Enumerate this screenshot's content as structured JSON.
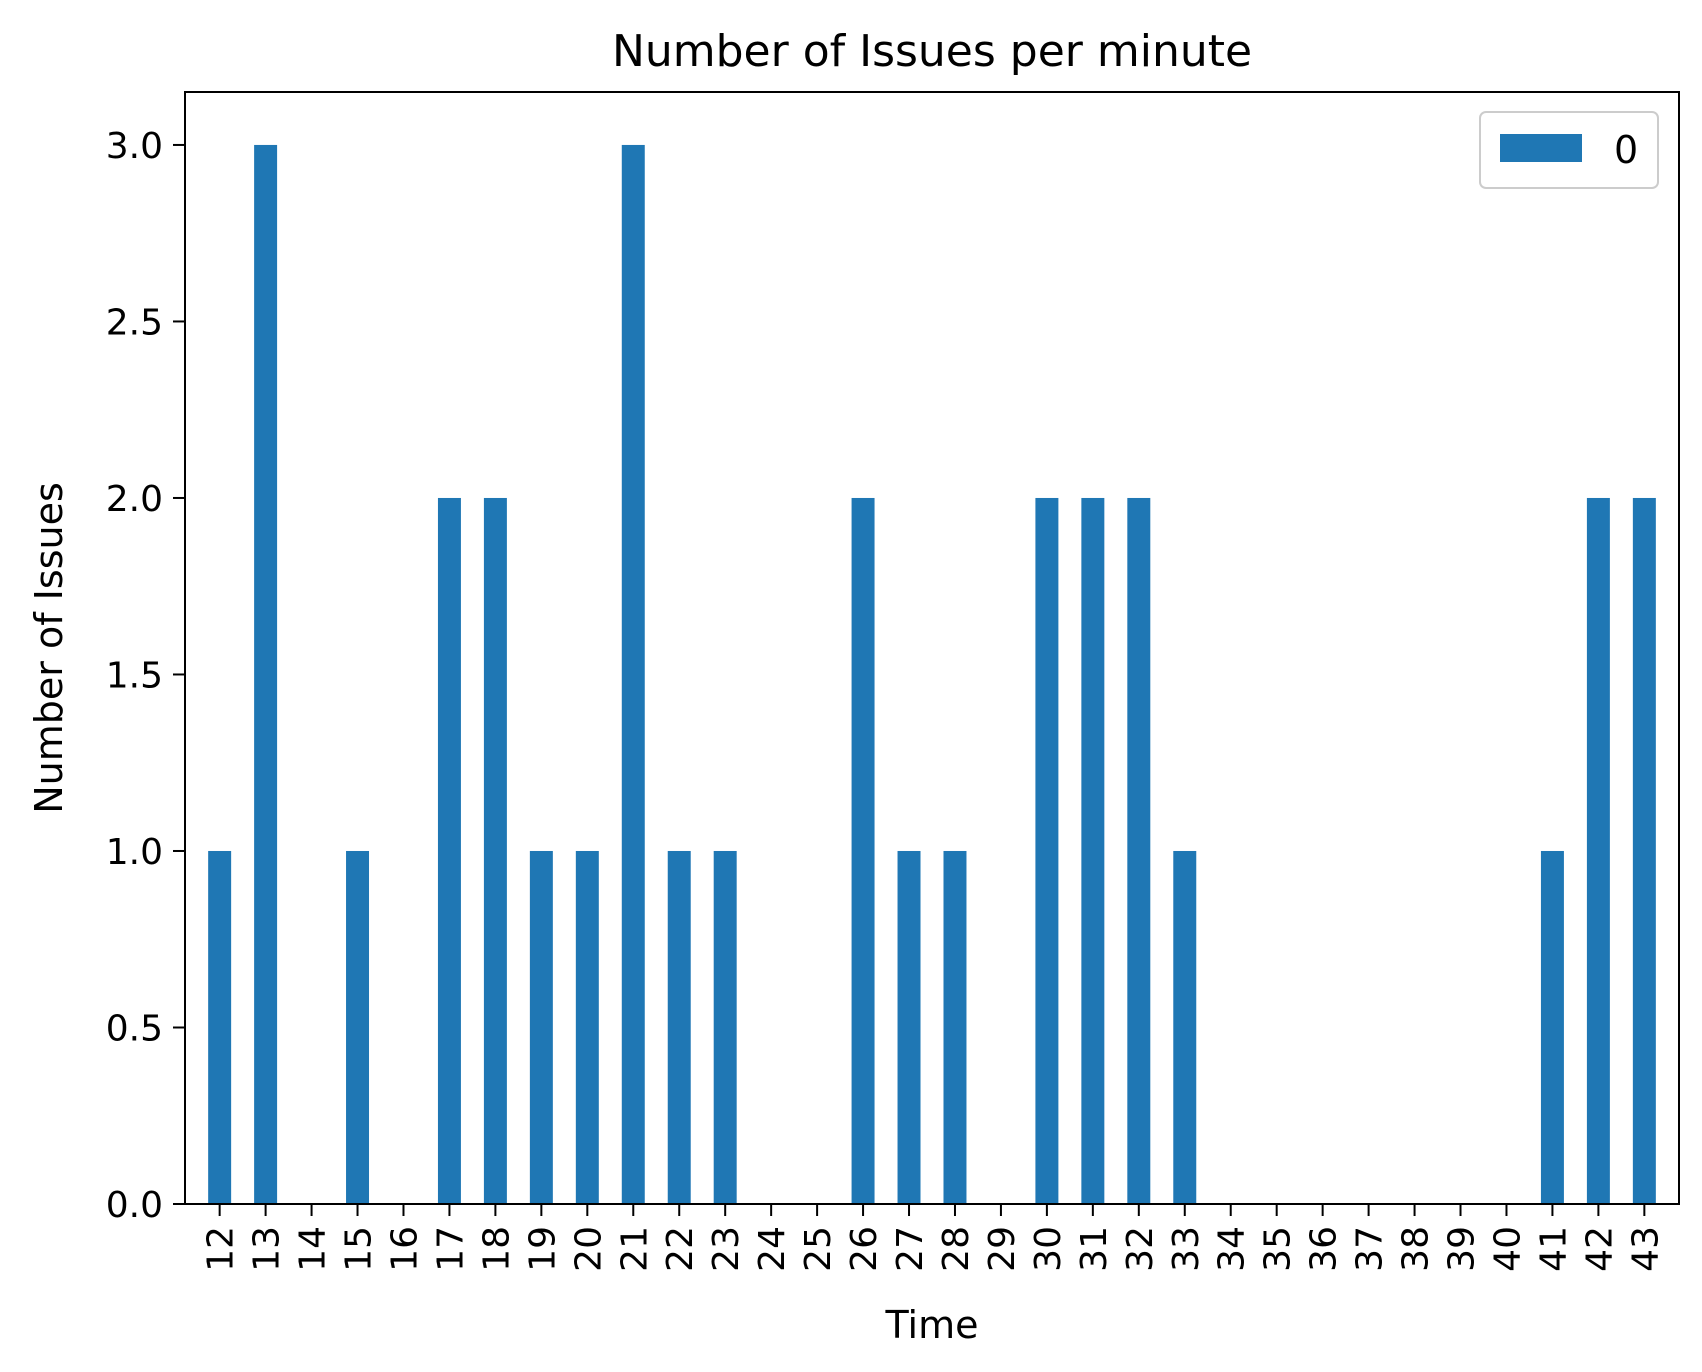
{
  "chart_data": {
    "type": "bar",
    "title": "Number of Issues per minute",
    "xlabel": "Time",
    "ylabel": "Number of Issues",
    "categories": [
      "12",
      "13",
      "14",
      "15",
      "16",
      "17",
      "18",
      "19",
      "20",
      "21",
      "22",
      "23",
      "24",
      "25",
      "26",
      "27",
      "28",
      "29",
      "30",
      "31",
      "32",
      "33",
      "34",
      "35",
      "36",
      "37",
      "38",
      "39",
      "40",
      "41",
      "42",
      "43"
    ],
    "series": [
      {
        "name": "0",
        "color": "#1f77b4",
        "values": [
          1,
          3,
          0,
          1,
          0,
          2,
          2,
          1,
          1,
          3,
          1,
          1,
          0,
          0,
          2,
          1,
          1,
          0,
          2,
          2,
          2,
          1,
          0,
          0,
          0,
          0,
          0,
          0,
          0,
          1,
          2,
          2
        ]
      }
    ],
    "ylim": [
      0,
      3.15
    ],
    "yticks": [
      "0.0",
      "0.5",
      "1.0",
      "1.5",
      "2.0",
      "2.5",
      "3.0"
    ],
    "grid": false,
    "legend_position": "top-right"
  }
}
